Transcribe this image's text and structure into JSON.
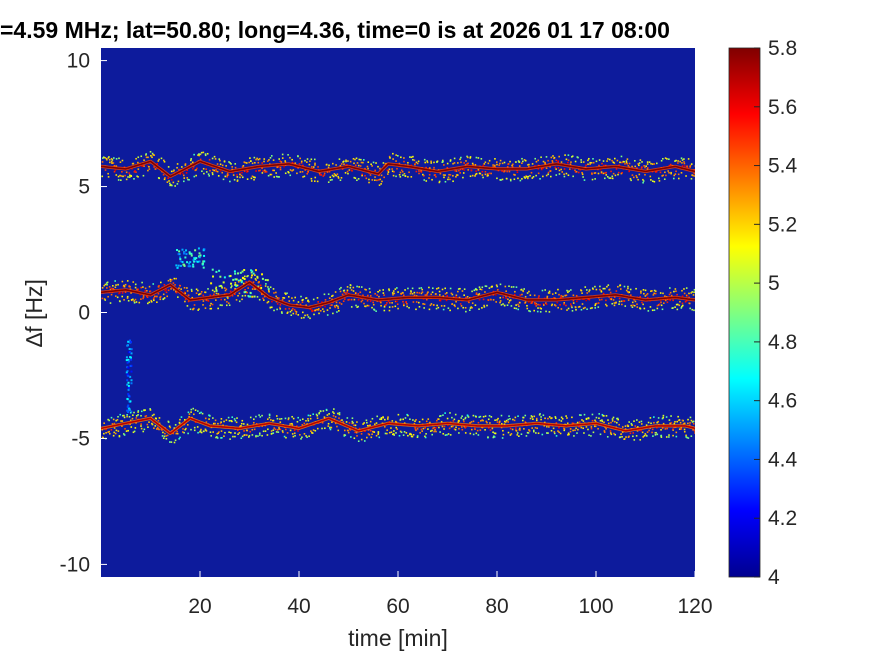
{
  "chart_data": {
    "type": "heatmap",
    "title": "=4.59 MHz;  lat=50.80; long=4.36, time=0 is at 2026 01 17 08:00",
    "xlabel": "time [min]",
    "ylabel": "∆f [Hz]",
    "xlim": [
      0,
      120
    ],
    "ylim": [
      -10.5,
      10.5
    ],
    "x_ticks": [
      20,
      40,
      60,
      80,
      100,
      120
    ],
    "x_tick_labels": [
      "20",
      "40",
      "60",
      "80",
      "100",
      "120"
    ],
    "y_ticks": [
      10,
      5,
      0,
      -5,
      -10
    ],
    "y_tick_labels": [
      "10",
      "5",
      "0",
      "-5",
      "-10"
    ],
    "colorbar": {
      "colormap": "jet",
      "clim": [
        4,
        5.8
      ],
      "ticks": [
        5.8,
        5.6,
        5.4,
        5.2,
        5,
        4.8,
        4.6,
        4.4,
        4.2,
        4
      ],
      "tick_labels": [
        "5.8",
        "5.6",
        "5.4",
        "5.2",
        "5",
        "4.8",
        "4.6",
        "4.4",
        "4.2",
        "4"
      ]
    },
    "background_value": 4.05,
    "traces": [
      {
        "time": [
          0,
          5,
          10,
          14,
          20,
          26,
          32,
          38,
          44,
          50,
          56,
          58,
          62,
          68,
          74,
          80,
          86,
          92,
          98,
          104,
          110,
          116,
          120
        ],
        "delta_f": [
          5.8,
          5.7,
          6.0,
          5.4,
          6.0,
          5.6,
          5.8,
          5.9,
          5.6,
          5.8,
          5.5,
          5.9,
          5.8,
          5.6,
          5.8,
          5.7,
          5.7,
          5.9,
          5.7,
          5.8,
          5.6,
          5.8,
          5.6
        ],
        "peak": 5.8
      },
      {
        "time": [
          0,
          5,
          10,
          14,
          18,
          22,
          26,
          30,
          34,
          38,
          42,
          46,
          50,
          56,
          62,
          68,
          74,
          80,
          86,
          92,
          98,
          104,
          110,
          116,
          120
        ],
        "delta_f": [
          0.8,
          0.9,
          0.7,
          1.1,
          0.5,
          0.6,
          0.7,
          1.2,
          0.6,
          0.3,
          0.2,
          0.4,
          0.7,
          0.5,
          0.6,
          0.6,
          0.5,
          0.8,
          0.5,
          0.5,
          0.6,
          0.7,
          0.5,
          0.6,
          0.5
        ],
        "peak": 5.8
      },
      {
        "time": [
          0,
          5,
          10,
          14,
          18,
          22,
          28,
          34,
          40,
          46,
          52,
          58,
          64,
          70,
          76,
          82,
          88,
          94,
          100,
          106,
          112,
          118,
          120
        ],
        "delta_f": [
          -4.6,
          -4.4,
          -4.2,
          -4.8,
          -4.2,
          -4.5,
          -4.6,
          -4.4,
          -4.6,
          -4.2,
          -4.7,
          -4.4,
          -4.5,
          -4.4,
          -4.5,
          -4.5,
          -4.4,
          -4.5,
          -4.4,
          -4.7,
          -4.5,
          -4.5,
          -4.6
        ],
        "peak": 5.7
      }
    ],
    "speckle_regions": [
      {
        "t_range": [
          15,
          21
        ],
        "f_range": [
          1.8,
          2.6
        ],
        "value": 4.6
      },
      {
        "t_range": [
          22,
          34
        ],
        "f_range": [
          0.6,
          1.8
        ],
        "value": 4.9
      },
      {
        "t_range": [
          5,
          6
        ],
        "f_range": [
          -4.0,
          -1.0
        ],
        "value": 4.4
      }
    ]
  }
}
